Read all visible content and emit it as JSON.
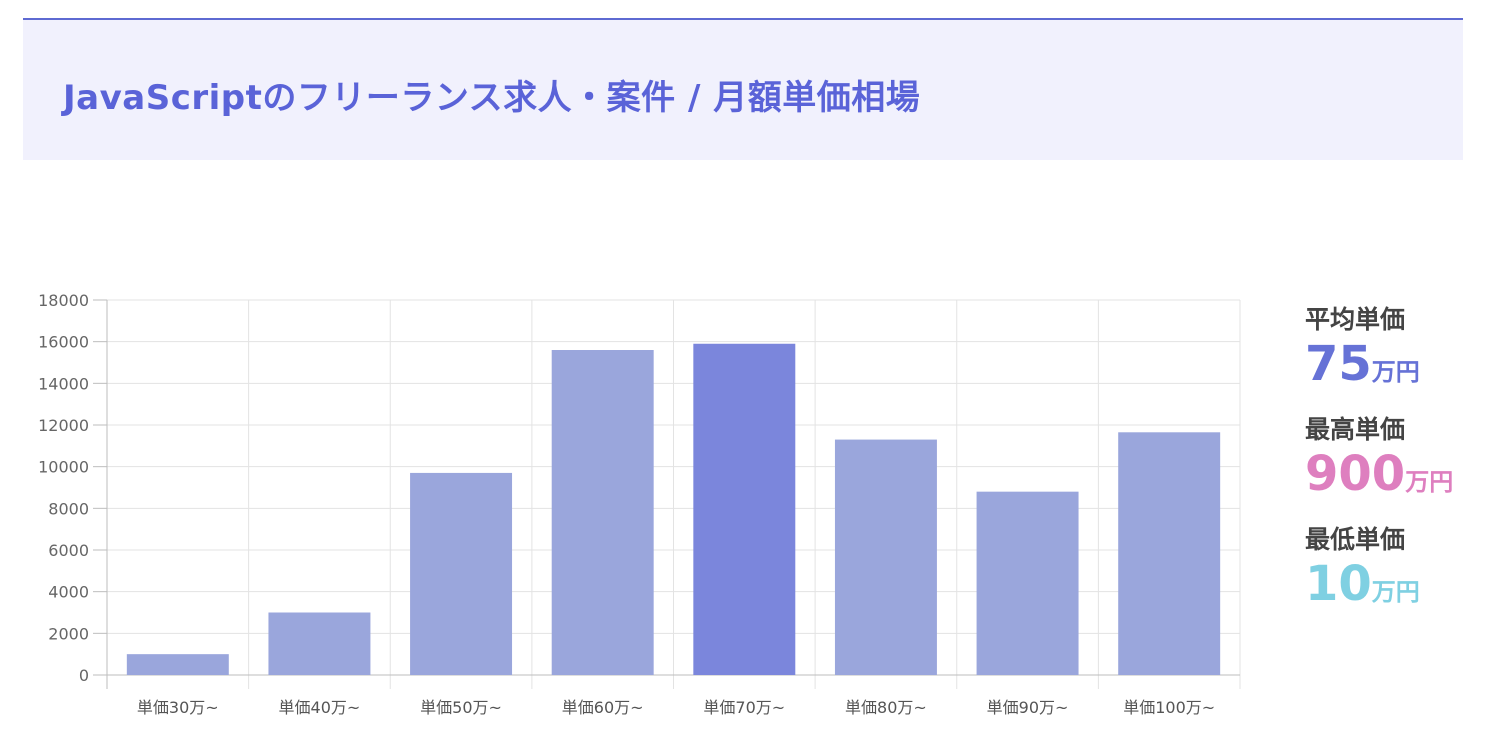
{
  "header": {
    "title": "JavaScriptのフリーランス求人・案件 / 月額単価相場"
  },
  "stats": {
    "average": {
      "label": "平均単価",
      "value": "75",
      "unit": "万円",
      "color": "#6672d6"
    },
    "max": {
      "label": "最高単価",
      "value": "900",
      "unit": "万円",
      "color": "#de7fbf"
    },
    "min": {
      "label": "最低単価",
      "value": "10",
      "unit": "万円",
      "color": "#7fd0e2"
    }
  },
  "chart_data": {
    "type": "bar",
    "categories": [
      "単価30万~",
      "単価40万~",
      "単価50万~",
      "単価60万~",
      "単価70万~",
      "単価80万~",
      "単価90万~",
      "単価100万~"
    ],
    "values": [
      1000,
      3000,
      9700,
      15600,
      15900,
      11300,
      8800,
      11650
    ],
    "highlight_index": 4,
    "ylim": [
      0,
      18000
    ],
    "yticks": [
      "0",
      "2000",
      "4000",
      "6000",
      "8000",
      "10000",
      "12000",
      "14000",
      "16000",
      "18000"
    ],
    "grid": true,
    "bar_color": "#9aa6dc",
    "highlight_color": "#7b86dc"
  }
}
